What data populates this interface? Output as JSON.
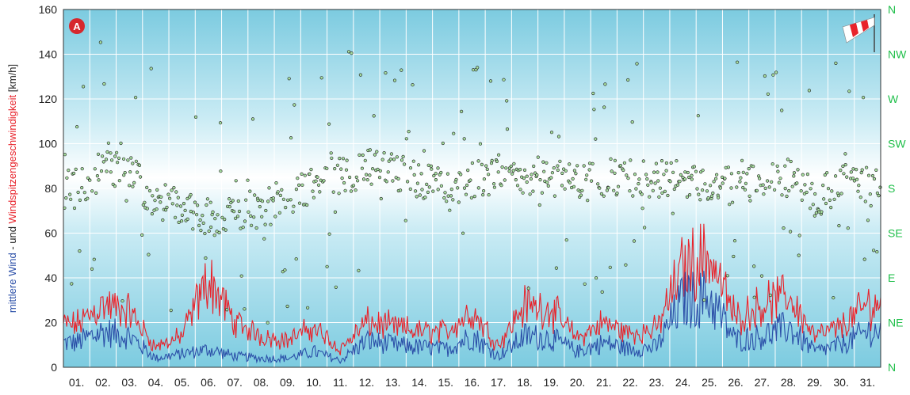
{
  "chart_data": {
    "type": "line",
    "badge": "A",
    "ylabel_parts": [
      {
        "text": "mittlere Wind",
        "color": "#2b4fa8"
      },
      {
        "text": " - und ",
        "color": "#222222"
      },
      {
        "text": "Windspitzengeschwindigkeit",
        "color": "#e8232b"
      },
      {
        "text": " [km/h]",
        "color": "#222222"
      }
    ],
    "ylim": [
      0,
      160
    ],
    "yticks": [
      "0",
      "20",
      "40",
      "60",
      "80",
      "100",
      "120",
      "140",
      "160"
    ],
    "right_ticks": [
      "N",
      "NE",
      "E",
      "SE",
      "S",
      "SW",
      "W",
      "NW",
      "N"
    ],
    "categories": [
      "01.",
      "02.",
      "03.",
      "04.",
      "05.",
      "06.",
      "07.",
      "08.",
      "09.",
      "10.",
      "11.",
      "12.",
      "13.",
      "14.",
      "15.",
      "16.",
      "17.",
      "18.",
      "19.",
      "20.",
      "21.",
      "22.",
      "23.",
      "24.",
      "25.",
      "26.",
      "27.",
      "28.",
      "29.",
      "30.",
      "31."
    ],
    "grid": true,
    "colors": {
      "mean": "#2b4fa8",
      "gust": "#e8232b",
      "direction": "#a8e0a0",
      "right_axis": "#1fbf4a"
    },
    "series": [
      {
        "key": "mean",
        "daily_values": [
          11,
          16,
          14,
          4,
          6,
          8,
          5,
          4,
          4,
          7,
          3,
          12,
          10,
          9,
          8,
          14,
          5,
          14,
          13,
          7,
          11,
          8,
          9,
          30,
          31,
          12,
          14,
          18,
          7,
          10,
          16
        ]
      },
      {
        "key": "gust",
        "daily_values": [
          19,
          28,
          25,
          9,
          14,
          40,
          20,
          14,
          12,
          18,
          8,
          20,
          18,
          16,
          16,
          25,
          10,
          28,
          26,
          13,
          20,
          15,
          17,
          45,
          50,
          22,
          28,
          32,
          14,
          18,
          28
        ]
      },
      {
        "key": "direction_deg",
        "daily_values": [
          180,
          200,
          195,
          170,
          160,
          150,
          155,
          160,
          170,
          185,
          195,
          200,
          195,
          190,
          175,
          190,
          195,
          195,
          190,
          185,
          190,
          190,
          190,
          190,
          185,
          180,
          190,
          190,
          170,
          185,
          190
        ]
      }
    ]
  }
}
